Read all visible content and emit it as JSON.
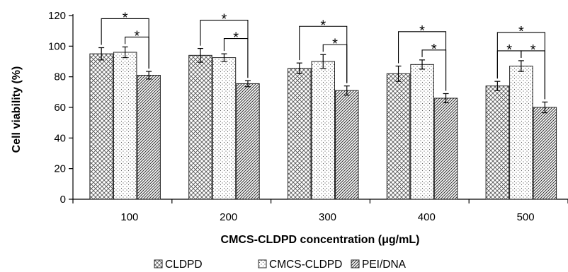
{
  "chart_data": {
    "type": "bar",
    "categories": [
      "100",
      "200",
      "300",
      "400",
      "500"
    ],
    "series": [
      {
        "name": "CLDPD",
        "values": [
          95,
          94,
          85.5,
          82,
          74
        ],
        "errors": [
          4,
          4.5,
          3.5,
          5,
          3
        ],
        "pattern": "crosshatch"
      },
      {
        "name": "CMCS-CLDPD",
        "values": [
          96,
          92.5,
          90,
          88,
          87
        ],
        "errors": [
          3.5,
          2.5,
          4.5,
          3,
          3.5
        ],
        "pattern": "dots"
      },
      {
        "name": "PEI/DNA",
        "values": [
          81,
          75.5,
          71,
          66,
          60
        ],
        "errors": [
          2.5,
          2,
          3,
          3,
          3.5
        ],
        "pattern": "diagonal"
      }
    ],
    "xlabel": "CMCS-CLDPD concentration (μg/mL)",
    "ylabel": "Cell viability (%)",
    "ylim": [
      0,
      120
    ],
    "yticks": [
      "0",
      "20",
      "40",
      "60",
      "80",
      "100",
      "120"
    ],
    "significance": [
      {
        "category": "100",
        "from": "CLDPD",
        "to": "PEI/DNA",
        "label": "*"
      },
      {
        "category": "100",
        "from": "CMCS-CLDPD",
        "to": "PEI/DNA",
        "label": "*"
      },
      {
        "category": "200",
        "from": "CLDPD",
        "to": "PEI/DNA",
        "label": "*"
      },
      {
        "category": "200",
        "from": "CMCS-CLDPD",
        "to": "PEI/DNA",
        "label": "*"
      },
      {
        "category": "300",
        "from": "CLDPD",
        "to": "PEI/DNA",
        "label": "*"
      },
      {
        "category": "300",
        "from": "CMCS-CLDPD",
        "to": "PEI/DNA",
        "label": "*"
      },
      {
        "category": "400",
        "from": "CLDPD",
        "to": "PEI/DNA",
        "label": "*"
      },
      {
        "category": "400",
        "from": "CMCS-CLDPD",
        "to": "PEI/DNA",
        "label": "*"
      },
      {
        "category": "500",
        "from": "CLDPD",
        "to": "PEI/DNA",
        "label": "*"
      },
      {
        "category": "500",
        "from": "CLDPD",
        "to": "CMCS-CLDPD",
        "label": "*"
      },
      {
        "category": "500",
        "from": "CMCS-CLDPD",
        "to": "PEI/DNA",
        "label": "*"
      }
    ],
    "legend": {
      "position": "bottom",
      "entries": [
        "CLDPD",
        "CMCS-CLDPD",
        "PEI/DNA"
      ]
    },
    "grid": false
  }
}
